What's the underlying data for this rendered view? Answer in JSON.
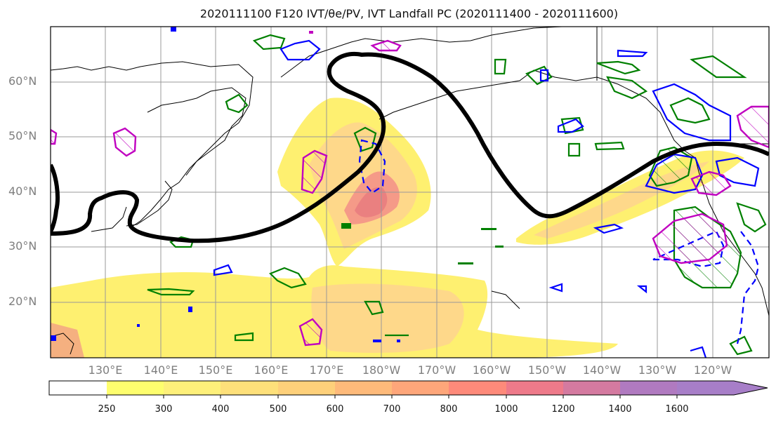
{
  "title": "2020111100 F120 IVT/θe/PV, IVT Landfall PC (2020111400 - 2020111600)",
  "lat_labels": [
    "60°N",
    "50°N",
    "40°N",
    "30°N",
    "20°N"
  ],
  "lon_labels": [
    "130°E",
    "140°E",
    "150°E",
    "160°E",
    "170°E",
    "180°W",
    "170°W",
    "160°W",
    "150°W",
    "140°W",
    "130°W",
    "120°W"
  ],
  "colorbar": {
    "ticks": [
      "250",
      "300",
      "400",
      "500",
      "600",
      "700",
      "800",
      "1000",
      "1200",
      "1400",
      "1600"
    ],
    "colors": [
      "#ffffff",
      "#fefe6e",
      "#fef07a",
      "#fee07a",
      "#fed07a",
      "#feba7a",
      "#fea67a",
      "#fe8a7a",
      "#ee7a8a",
      "#d47aa0",
      "#b07ac0",
      "#a77ec8"
    ]
  },
  "contour_colors": {
    "ivt_fill": "#fde866",
    "jet": "#000000",
    "theta_e": "#008000",
    "pv_positive": "#0000ff",
    "pv_hatch": "#c000c0"
  }
}
